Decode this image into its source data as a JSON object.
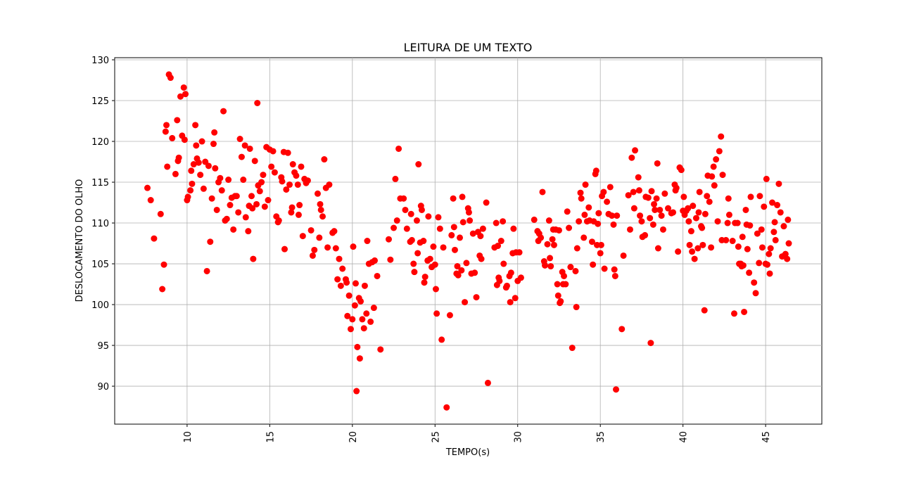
{
  "chart_data": {
    "type": "scatter",
    "title": "LEITURA DE UM TEXTO",
    "x_label": "TEMPO(s)",
    "y_label": "DESLOCAMENTO DO OLHO",
    "color": "#ff0000",
    "grid": true,
    "xlim": [
      5.62,
      48.4
    ],
    "ylim": [
      85.35,
      130.26
    ],
    "xticks": [
      10,
      15,
      20,
      25,
      30,
      35,
      40,
      45
    ],
    "yticks": [
      90,
      95,
      100,
      105,
      110,
      115,
      120,
      125,
      130
    ],
    "x": [
      7.6,
      7.8,
      8.0,
      8.4,
      8.5,
      8.6,
      8.7,
      8.75,
      8.8,
      8.9,
      9.0,
      9.1,
      9.3,
      9.4,
      9.45,
      9.5,
      9.6,
      9.7,
      9.8,
      9.85,
      9.9,
      10.0,
      10.05,
      10.2,
      10.25,
      10.3,
      10.4,
      10.5,
      10.55,
      10.6,
      10.7,
      10.8,
      10.9,
      11.0,
      11.1,
      11.2,
      11.3,
      11.4,
      11.5,
      11.6,
      11.65,
      11.7,
      11.8,
      11.9,
      12.0,
      12.1,
      12.2,
      12.3,
      12.4,
      12.5,
      12.6,
      12.7,
      12.8,
      12.9,
      13.0,
      13.1,
      13.2,
      13.3,
      13.4,
      13.5,
      13.55,
      13.7,
      13.75,
      13.8,
      13.9,
      13.95,
      14.0,
      14.1,
      14.2,
      14.25,
      14.3,
      14.4,
      14.5,
      14.6,
      14.7,
      14.8,
      14.9,
      15.0,
      15.1,
      15.2,
      15.3,
      15.4,
      15.5,
      15.55,
      15.7,
      15.75,
      15.9,
      15.85,
      16.0,
      16.1,
      16.2,
      16.3,
      16.35,
      16.4,
      16.5,
      16.6,
      16.7,
      16.75,
      16.8,
      16.9,
      17.0,
      17.1,
      17.2,
      17.3,
      17.5,
      17.6,
      17.7,
      17.9,
      18.0,
      18.05,
      18.1,
      18.2,
      18.3,
      18.4,
      18.5,
      18.6,
      18.8,
      18.9,
      19.0,
      19.1,
      19.2,
      19.3,
      19.4,
      19.6,
      19.65,
      19.7,
      19.8,
      19.9,
      20.0,
      20.05,
      20.2,
      20.15,
      20.25,
      20.3,
      20.4,
      20.45,
      20.5,
      20.6,
      20.7,
      20.75,
      20.85,
      20.9,
      21.0,
      21.1,
      21.2,
      21.3,
      21.35,
      21.5,
      21.7,
      22.2,
      22.3,
      22.5,
      22.6,
      22.7,
      22.8,
      22.9,
      23.1,
      23.2,
      23.3,
      23.5,
      23.55,
      23.6,
      23.7,
      23.75,
      23.9,
      23.95,
      24.0,
      24.1,
      24.15,
      24.2,
      24.3,
      24.35,
      24.4,
      24.6,
      24.55,
      24.7,
      24.8,
      24.9,
      25.0,
      25.05,
      25.1,
      25.2,
      25.3,
      25.4,
      25.5,
      25.7,
      25.9,
      26.0,
      26.1,
      26.15,
      26.2,
      26.3,
      26.35,
      26.4,
      26.5,
      26.6,
      26.65,
      26.7,
      26.8,
      26.9,
      27.0,
      27.05,
      27.1,
      27.2,
      27.3,
      27.4,
      27.5,
      27.6,
      27.7,
      27.75,
      27.8,
      27.9,
      28.1,
      28.2,
      28.6,
      28.7,
      28.75,
      28.8,
      28.85,
      28.9,
      29.0,
      29.1,
      29.15,
      29.3,
      29.35,
      29.5,
      29.55,
      29.6,
      29.7,
      29.75,
      29.85,
      29.9,
      30.0,
      30.1,
      30.2,
      31.0,
      31.2,
      31.25,
      31.3,
      31.4,
      31.5,
      31.6,
      31.65,
      31.8,
      31.9,
      31.95,
      32.0,
      32.1,
      32.15,
      32.2,
      32.3,
      32.4,
      32.45,
      32.5,
      32.55,
      32.6,
      32.7,
      32.75,
      32.8,
      32.9,
      33.0,
      33.1,
      33.2,
      33.3,
      33.5,
      33.55,
      33.6,
      33.7,
      33.8,
      33.85,
      34.0,
      34.05,
      34.1,
      34.2,
      34.3,
      34.35,
      34.5,
      34.55,
      34.6,
      34.7,
      34.75,
      34.8,
      34.85,
      34.9,
      35.0,
      35.05,
      35.1,
      35.2,
      35.25,
      35.4,
      35.5,
      35.6,
      35.7,
      35.8,
      35.85,
      35.9,
      35.95,
      36.0,
      36.3,
      36.4,
      36.7,
      36.8,
      36.9,
      37.0,
      37.05,
      37.1,
      37.3,
      37.35,
      37.4,
      37.5,
      37.55,
      37.7,
      37.75,
      37.9,
      38.0,
      38.05,
      38.1,
      38.2,
      38.25,
      38.3,
      38.4,
      38.45,
      38.5,
      38.6,
      38.7,
      38.8,
      38.9,
      39.1,
      39.3,
      39.4,
      39.5,
      39.55,
      39.6,
      39.7,
      39.8,
      39.9,
      40.0,
      40.05,
      40.1,
      40.2,
      40.3,
      40.35,
      40.4,
      40.5,
      40.55,
      40.6,
      40.7,
      40.8,
      40.9,
      40.95,
      41.0,
      41.1,
      41.15,
      41.2,
      41.3,
      41.35,
      41.5,
      41.45,
      41.6,
      41.7,
      41.75,
      41.85,
      41.9,
      42.0,
      42.1,
      42.2,
      42.3,
      42.35,
      42.4,
      42.6,
      42.7,
      42.75,
      42.8,
      43.0,
      43.1,
      43.15,
      43.3,
      43.35,
      43.4,
      43.5,
      43.55,
      43.6,
      43.65,
      43.7,
      43.8,
      43.85,
      43.9,
      44.0,
      44.05,
      44.1,
      44.3,
      44.4,
      44.5,
      44.6,
      44.65,
      44.75,
      44.8,
      44.9,
      45.0,
      45.05,
      45.1,
      45.2,
      45.25,
      45.3,
      45.4,
      45.5,
      45.55,
      45.6,
      45.7,
      45.8,
      45.9,
      46.0,
      46.1,
      46.2,
      46.3,
      46.35,
      46.4
    ],
    "values": [
      114.3,
      112.8,
      108.1,
      111.1,
      101.9,
      104.9,
      121.2,
      122.0,
      116.9,
      128.2,
      127.8,
      120.4,
      116.0,
      122.6,
      117.6,
      118.0,
      125.5,
      120.7,
      126.6,
      120.2,
      125.8,
      112.8,
      113.2,
      114.0,
      116.4,
      114.8,
      117.2,
      122.0,
      119.5,
      117.9,
      117.4,
      115.9,
      120.0,
      114.2,
      117.5,
      104.1,
      117.0,
      107.7,
      113.0,
      119.7,
      121.1,
      116.7,
      111.6,
      115.0,
      115.5,
      114.0,
      123.7,
      110.3,
      110.5,
      115.3,
      112.2,
      113.1,
      109.2,
      113.3,
      113.3,
      111.3,
      120.3,
      118.1,
      115.3,
      119.5,
      110.7,
      109.0,
      112.1,
      119.1,
      113.3,
      111.8,
      105.6,
      117.6,
      112.3,
      124.7,
      114.6,
      113.9,
      115.0,
      115.9,
      112.0,
      119.3,
      112.8,
      119.0,
      116.9,
      118.8,
      116.2,
      110.8,
      110.1,
      110.3,
      115.6,
      115.1,
      106.8,
      118.7,
      114.1,
      118.6,
      114.7,
      111.3,
      111.9,
      117.2,
      116.2,
      115.8,
      114.7,
      111.0,
      112.2,
      116.9,
      108.4,
      115.4,
      114.9,
      115.2,
      109.1,
      106.0,
      106.7,
      113.6,
      108.2,
      112.3,
      111.6,
      110.8,
      117.8,
      114.3,
      107.0,
      114.7,
      108.8,
      109.0,
      106.9,
      103.1,
      105.6,
      102.3,
      104.4,
      103.1,
      102.7,
      98.6,
      101.1,
      97.0,
      98.2,
      107.1,
      102.6,
      99.9,
      89.4,
      94.8,
      100.8,
      93.4,
      100.4,
      98.2,
      97.1,
      102.3,
      98.9,
      107.8,
      105.0,
      97.9,
      105.2,
      99.6,
      105.4,
      103.5,
      94.5,
      108.0,
      105.5,
      109.4,
      115.4,
      110.3,
      119.1,
      113.0,
      113.0,
      111.6,
      109.3,
      107.7,
      111.1,
      107.9,
      105.0,
      104.0,
      110.3,
      106.3,
      117.2,
      107.6,
      112.1,
      111.6,
      107.8,
      102.7,
      103.4,
      110.8,
      105.4,
      105.6,
      104.6,
      107.1,
      104.9,
      101.9,
      98.9,
      110.7,
      109.3,
      95.7,
      107.0,
      87.4,
      98.7,
      108.5,
      113.0,
      109.5,
      106.7,
      103.8,
      104.7,
      103.6,
      108.2,
      104.2,
      113.2,
      110.1,
      100.3,
      105.1,
      111.8,
      111.3,
      110.3,
      103.8,
      108.7,
      103.9,
      100.9,
      108.9,
      106.0,
      108.4,
      105.6,
      109.3,
      112.5,
      90.4,
      107.0,
      110.0,
      102.4,
      107.2,
      103.3,
      102.9,
      107.8,
      110.2,
      105.0,
      102.1,
      102.3,
      103.5,
      100.3,
      103.9,
      106.3,
      109.3,
      100.8,
      106.4,
      102.9,
      106.4,
      103.3,
      110.4,
      109.0,
      107.8,
      108.7,
      108.2,
      113.8,
      105.3,
      104.8,
      107.4,
      110.3,
      105.7,
      104.7,
      108.0,
      109.2,
      107.3,
      109.2,
      102.5,
      101.1,
      109.1,
      100.2,
      100.4,
      104.0,
      102.5,
      103.5,
      102.5,
      111.4,
      109.4,
      104.6,
      94.7,
      104.1,
      99.7,
      106.9,
      110.2,
      113.7,
      113.0,
      108.2,
      111.0,
      114.7,
      110.2,
      111.9,
      110.3,
      107.7,
      104.9,
      110.2,
      116.0,
      116.4,
      107.3,
      109.9,
      111.2,
      106.3,
      107.3,
      113.3,
      113.8,
      104.4,
      112.6,
      111.1,
      114.4,
      110.9,
      109.8,
      104.3,
      103.5,
      89.6,
      110.9,
      97.0,
      106.0,
      113.4,
      109.2,
      118.0,
      113.8,
      111.8,
      118.9,
      115.6,
      114.0,
      110.9,
      110.2,
      108.3,
      108.5,
      113.2,
      113.1,
      110.6,
      95.3,
      113.9,
      109.8,
      112.3,
      111.6,
      113.0,
      117.3,
      106.9,
      111.6,
      110.9,
      109.2,
      113.6,
      111.8,
      111.2,
      111.3,
      114.7,
      114.0,
      114.3,
      106.5,
      116.8,
      116.5,
      111.5,
      113.2,
      111.0,
      111.5,
      111.8,
      110.2,
      107.3,
      109.0,
      106.5,
      112.1,
      105.6,
      110.6,
      106.9,
      111.3,
      113.8,
      109.6,
      109.4,
      107.3,
      99.3,
      111.1,
      115.8,
      113.3,
      112.6,
      107.0,
      115.7,
      116.9,
      114.6,
      117.8,
      110.2,
      118.8,
      120.6,
      107.9,
      115.9,
      107.9,
      110.0,
      113.0,
      111.0,
      107.8,
      98.9,
      110.0,
      110.0,
      107.1,
      105.0,
      105.0,
      104.7,
      108.3,
      104.8,
      99.1,
      111.6,
      109.8,
      106.8,
      103.9,
      109.7,
      113.2,
      102.7,
      101.4,
      108.7,
      105.1,
      113.3,
      109.2,
      107.0,
      112.0,
      105.0,
      115.4,
      104.9,
      106.2,
      103.8,
      106.9,
      112.5,
      108.9,
      110.1,
      107.9,
      112.2,
      114.8,
      111.3,
      105.9,
      109.6,
      106.2,
      105.6,
      110.4,
      107.5
    ]
  }
}
